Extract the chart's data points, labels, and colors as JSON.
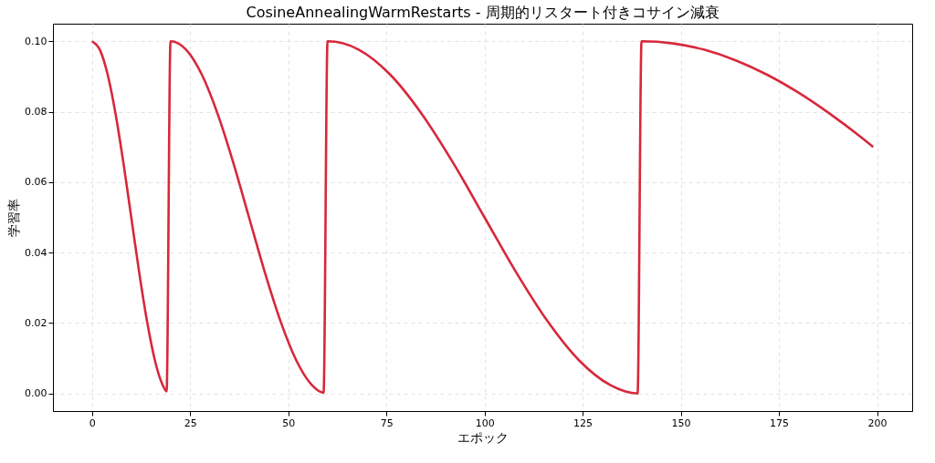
{
  "chart_data": {
    "type": "line",
    "title": "CosineAnnealingWarmRestarts - 周期的リスタート付きコサイン減衰",
    "xlabel": "エポック",
    "ylabel": "学習率",
    "series": [
      {
        "color": "#d7283b",
        "x": [
          0,
          2,
          4,
          6,
          8,
          10,
          12,
          14,
          16,
          18,
          19,
          20,
          24,
          28,
          32,
          36,
          40,
          44,
          48,
          52,
          56,
          59,
          60,
          68,
          76,
          84,
          92,
          100,
          108,
          116,
          124,
          132,
          139,
          140,
          148,
          156,
          164,
          172,
          180,
          188,
          196,
          199
        ],
        "values": [
          0.1,
          0.0976,
          0.0905,
          0.0794,
          0.0655,
          0.05,
          0.0345,
          0.0206,
          0.0095,
          0.0024,
          0.0006,
          0.1,
          0.0976,
          0.0905,
          0.0794,
          0.0655,
          0.05,
          0.0345,
          0.0206,
          0.0095,
          0.0024,
          0.0002,
          0.1,
          0.0976,
          0.0905,
          0.0794,
          0.0655,
          0.05,
          0.0345,
          0.0206,
          0.0095,
          0.0024,
          0.0,
          0.1,
          0.0994,
          0.0976,
          0.0946,
          0.0905,
          0.0854,
          0.0794,
          0.0727,
          0.07
        ]
      }
    ],
    "xlim": [
      -9.95,
      208.95
    ],
    "xticks": [
      0,
      25,
      50,
      75,
      100,
      125,
      150,
      175,
      200
    ],
    "ylim": [
      -0.005,
      0.105
    ],
    "yticks": [
      {
        "value": 0,
        "label": "0.00"
      },
      {
        "value": 0.02,
        "label": "0.02"
      },
      {
        "value": 0.04,
        "label": "0.04"
      },
      {
        "value": 0.06,
        "label": "0.06"
      },
      {
        "value": 0.08,
        "label": "0.08"
      },
      {
        "value": 0.1,
        "label": "0.10"
      }
    ],
    "grid": true,
    "line_style": "solid",
    "marker": "none"
  }
}
